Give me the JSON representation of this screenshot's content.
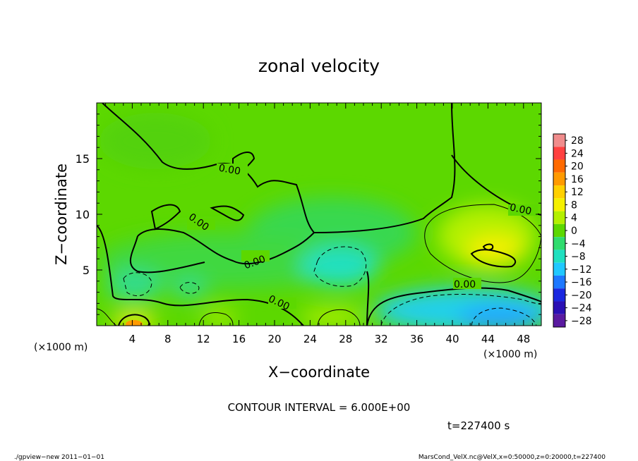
{
  "chart_data": {
    "type": "heatmap",
    "title": "zonal velocity",
    "xlabel": "X−coordinate",
    "ylabel": "Z−coordinate",
    "x_unit": "(×1000 m)",
    "y_unit": "(×1000 m)",
    "xlim": [
      0,
      50
    ],
    "ylim": [
      0,
      20
    ],
    "x_ticks": [
      "4",
      "8",
      "12",
      "16",
      "20",
      "24",
      "28",
      "32",
      "36",
      "40",
      "44",
      "48"
    ],
    "y_ticks": [
      "5",
      "10",
      "15"
    ],
    "colorbar": {
      "levels": [
        28,
        24,
        20,
        16,
        12,
        8,
        4,
        0,
        -4,
        -8,
        -12,
        -16,
        -20,
        -24,
        -28
      ],
      "labels": [
        "28",
        "24",
        "20",
        "16",
        "12",
        "8",
        "4",
        "0",
        "−4",
        "−8",
        "−12",
        "−16",
        "−20",
        "−24",
        "−28"
      ],
      "colors": [
        "#f08c8c",
        "#ff4040",
        "#ff6a00",
        "#ff9a00",
        "#ffd000",
        "#f5f000",
        "#b4f000",
        "#5cd800",
        "#30dc6e",
        "#20e0c0",
        "#20c8ff",
        "#1e78ff",
        "#1a28e0",
        "#2a10b4",
        "#5a1aa0"
      ]
    },
    "contour_labels": [
      "0.00",
      "0.00",
      "0.00",
      "0.00",
      "0.00",
      "0.00"
    ],
    "features": [
      {
        "x": 4,
        "z": 0.5,
        "value": 8
      },
      {
        "x": 44,
        "z": 6.5,
        "value": 8
      },
      {
        "x": 46,
        "z": 1.0,
        "value": -12
      },
      {
        "x": 27,
        "z": 5.5,
        "value": -8
      },
      {
        "x": 5,
        "z": 3.0,
        "value": -6
      },
      {
        "x": 10.5,
        "z": 3.5,
        "value": -6
      },
      {
        "x": 36,
        "z": 1.5,
        "value": -6
      }
    ],
    "annotation": "CONTOUR INTERVAL = 6.000E+00",
    "time_label": "t=227400 s",
    "footer_left": "./gpview−new   2011−01−01",
    "footer_right": "MarsCond_VelX.nc@VelX,x=0:50000,z=0:20000,t=227400"
  }
}
